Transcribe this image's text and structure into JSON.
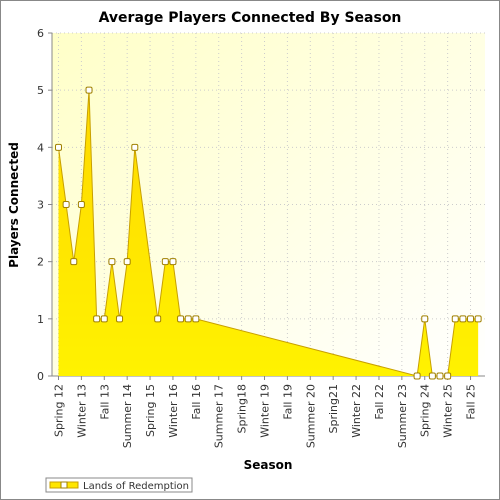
{
  "chart_data": {
    "type": "area",
    "title": "Average Players Connected By Season",
    "x_label": "Season",
    "y_label": "Players Connected",
    "categories": [
      "Spring 12",
      null,
      null,
      "Winter 13",
      null,
      null,
      "Fall 13",
      null,
      null,
      "Summer 14",
      null,
      null,
      "Spring 15",
      null,
      null,
      "Winter 16",
      null,
      null,
      "Fall 16",
      null,
      null,
      "Summer 17",
      null,
      null,
      "Spring18",
      null,
      null,
      "Winter 19",
      null,
      null,
      "Fall 19",
      null,
      null,
      "Summer 20",
      null,
      null,
      "Spring21",
      null,
      null,
      "Winter 22",
      null,
      null,
      "Fall 22",
      null,
      null,
      "Summer 23",
      null,
      null,
      "Spring 24",
      null,
      null,
      "Winter 25",
      null,
      null,
      "Fall 25",
      null
    ],
    "series": [
      {
        "name": "Lands of Redemption",
        "color": "#ffe600",
        "line_color": "#c8a000",
        "values": [
          4,
          3,
          2,
          3,
          5,
          1,
          1,
          2,
          1,
          2,
          4,
          null,
          null,
          1,
          2,
          2,
          1,
          1,
          1,
          null,
          null,
          null,
          null,
          null,
          null,
          null,
          null,
          null,
          null,
          null,
          null,
          null,
          null,
          null,
          null,
          null,
          null,
          null,
          null,
          null,
          null,
          null,
          null,
          null,
          null,
          null,
          null,
          0,
          1,
          0,
          0,
          0,
          1,
          1,
          1,
          1
        ]
      }
    ],
    "ylim": [
      0,
      6
    ],
    "yticks": [
      0,
      1,
      2,
      3,
      4,
      5,
      6
    ],
    "grid": true,
    "legend": "bottom-left"
  }
}
